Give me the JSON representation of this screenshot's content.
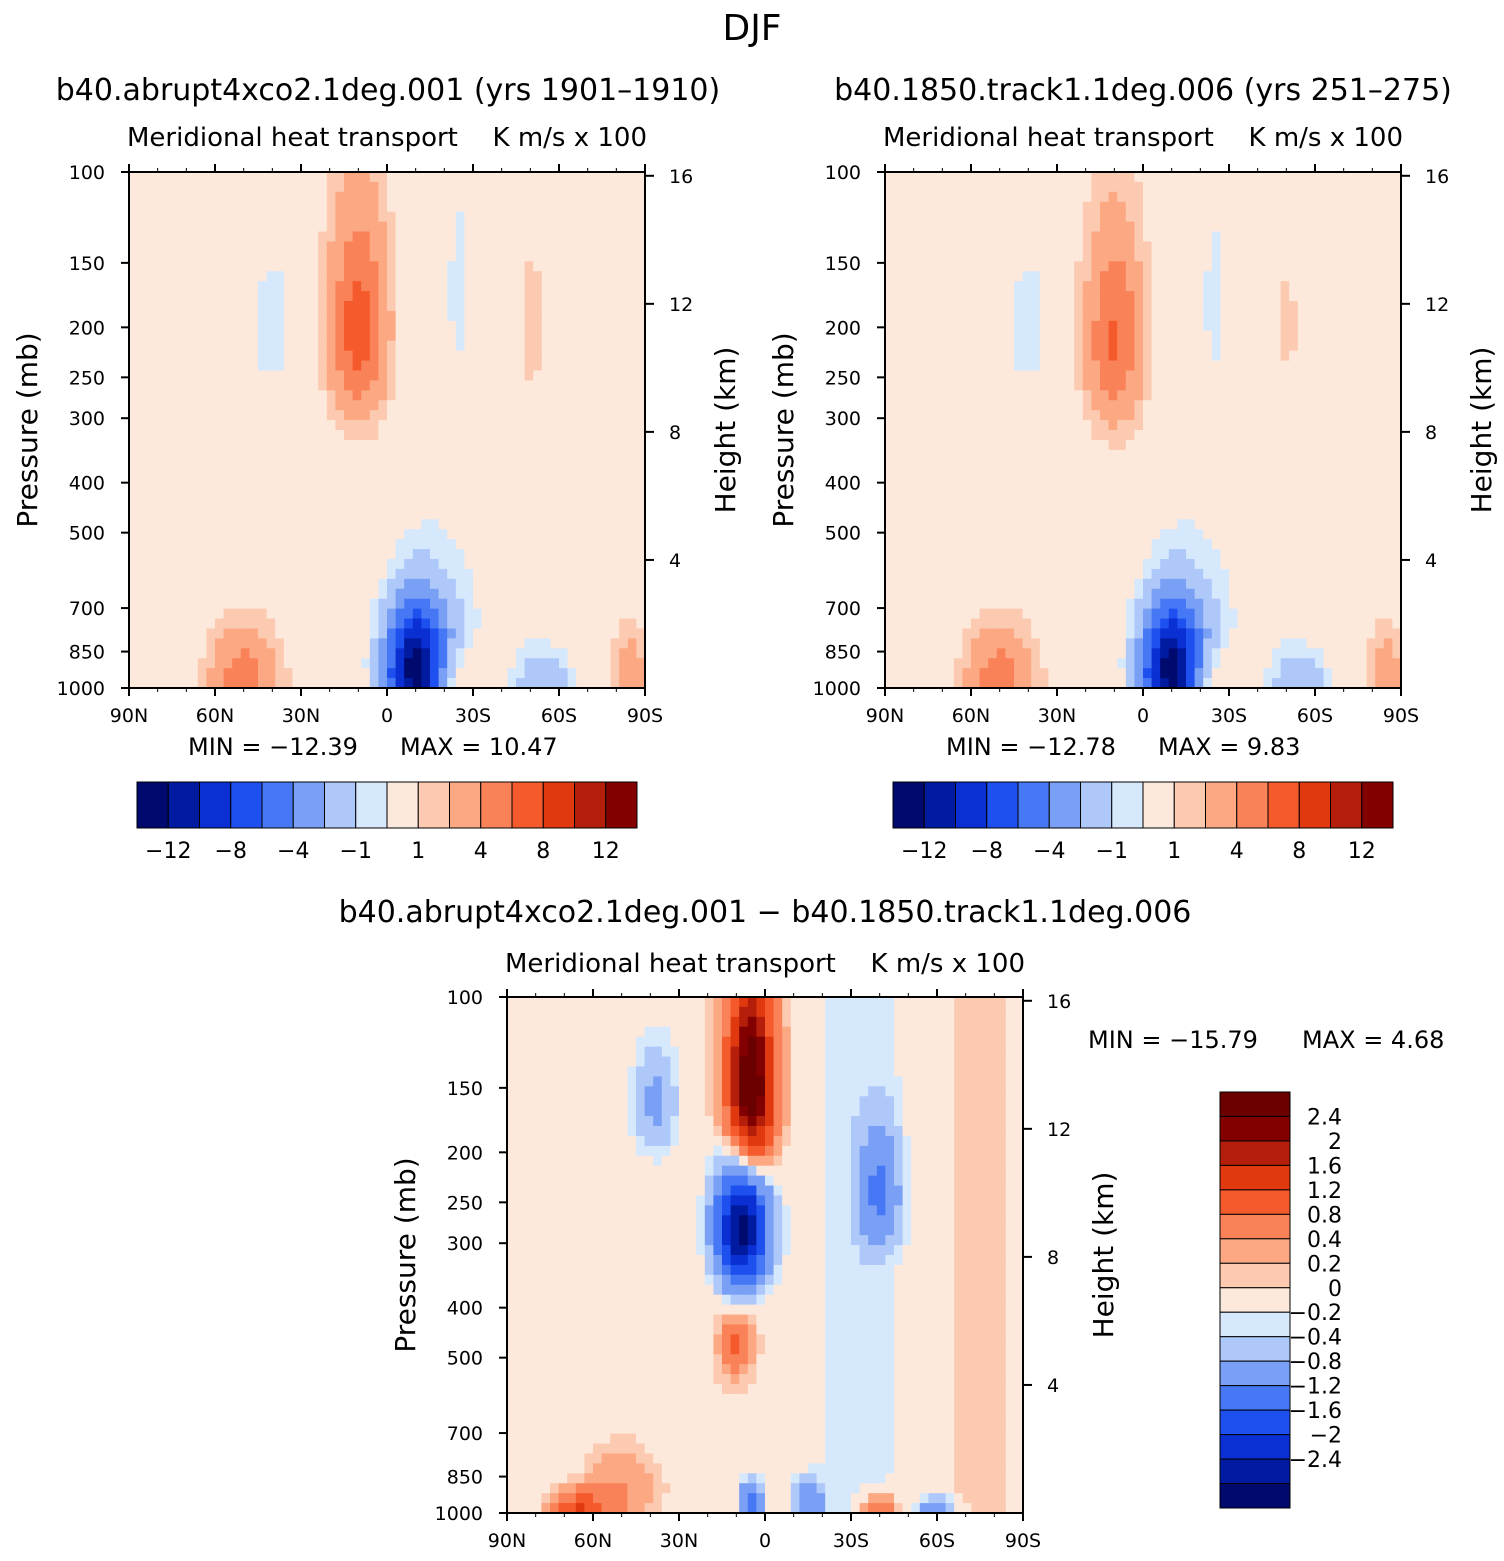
{
  "figure": {
    "season_title": "DJF"
  },
  "chart_data": [
    {
      "type": "heatmap",
      "id": "panel1",
      "title": "b40.abrupt4xco2.1deg.001 (yrs 1901–1910)",
      "left_label": "Meridional heat transport",
      "right_label": "K m/s x 100",
      "ylabel": "Pressure (mb)",
      "y2label": "Height (km)",
      "x_ticks": [
        "90N",
        "60N",
        "30N",
        "0",
        "30S",
        "60S",
        "90S"
      ],
      "x_range": [
        90,
        -90
      ],
      "y_ticks": [
        "100",
        "150",
        "200",
        "250",
        "300",
        "400",
        "500",
        "700",
        "850",
        "1000"
      ],
      "y_range": [
        100,
        1000
      ],
      "y2_ticks": [
        "16",
        "12",
        "8",
        "4"
      ],
      "min_label": "MIN = −12.39",
      "max_label": "MAX =  10.47",
      "min": -12.39,
      "max": 10.47,
      "colorbar_labels": [
        "−12",
        "−8",
        "−4",
        "−1",
        "1",
        "4",
        "8",
        "12"
      ],
      "colorbar_levels": [
        -14,
        -12,
        -10,
        -8,
        -6,
        -4,
        -2,
        -1,
        1,
        2,
        4,
        6,
        8,
        10,
        12,
        14
      ],
      "features": [
        {
          "lat": 50,
          "p": 950,
          "value": 5,
          "w": 12,
          "h": 200
        },
        {
          "lat": -10,
          "p": 980,
          "value": -12,
          "w": 10,
          "h": 260
        },
        {
          "lat": -12,
          "p": 870,
          "value": -6,
          "w": 14,
          "h": 260
        },
        {
          "lat": -20,
          "p": 970,
          "value": 4,
          "w": 14,
          "h": 150
        },
        {
          "lat": -55,
          "p": 980,
          "value": -4,
          "w": 10,
          "h": 150
        },
        {
          "lat": -85,
          "p": 950,
          "value": 3,
          "w": 6,
          "h": 180
        },
        {
          "lat": 10,
          "p": 200,
          "value": 7,
          "w": 10,
          "h": 90
        },
        {
          "lat": 40,
          "p": 200,
          "value": -2,
          "w": 7,
          "h": 60
        },
        {
          "lat": -25,
          "p": 170,
          "value": -1.5,
          "w": 3,
          "h": 50
        },
        {
          "lat": -50,
          "p": 200,
          "value": 2,
          "w": 5,
          "h": 70
        }
      ]
    },
    {
      "type": "heatmap",
      "id": "panel2",
      "title": "b40.1850.track1.1deg.006 (yrs 251–275)",
      "left_label": "Meridional heat transport",
      "right_label": "K m/s x 100",
      "ylabel": "Pressure (mb)",
      "y2label": "Height (km)",
      "x_ticks": [
        "90N",
        "60N",
        "30N",
        "0",
        "30S",
        "60S",
        "90S"
      ],
      "x_range": [
        90,
        -90
      ],
      "y_ticks": [
        "100",
        "150",
        "200",
        "250",
        "300",
        "400",
        "500",
        "700",
        "850",
        "1000"
      ],
      "y_range": [
        100,
        1000
      ],
      "y2_ticks": [
        "16",
        "12",
        "8",
        "4"
      ],
      "min_label": "MIN = −12.78",
      "max_label": "MAX =   9.83",
      "min": -12.78,
      "max": 9.83,
      "colorbar_labels": [
        "−12",
        "−8",
        "−4",
        "−1",
        "1",
        "4",
        "8",
        "12"
      ],
      "colorbar_levels": [
        -14,
        -12,
        -10,
        -8,
        -6,
        -4,
        -2,
        -1,
        1,
        2,
        4,
        6,
        8,
        10,
        12,
        14
      ],
      "features": [
        {
          "lat": 50,
          "p": 950,
          "value": 5,
          "w": 12,
          "h": 200
        },
        {
          "lat": -10,
          "p": 980,
          "value": -12,
          "w": 10,
          "h": 260
        },
        {
          "lat": -12,
          "p": 870,
          "value": -6,
          "w": 14,
          "h": 260
        },
        {
          "lat": -20,
          "p": 970,
          "value": 4,
          "w": 14,
          "h": 150
        },
        {
          "lat": -55,
          "p": 980,
          "value": -4,
          "w": 10,
          "h": 150
        },
        {
          "lat": -85,
          "p": 950,
          "value": 3,
          "w": 6,
          "h": 180
        },
        {
          "lat": 10,
          "p": 210,
          "value": 6,
          "w": 10,
          "h": 90
        },
        {
          "lat": 40,
          "p": 200,
          "value": -2,
          "w": 7,
          "h": 60
        },
        {
          "lat": -25,
          "p": 180,
          "value": -1.5,
          "w": 3,
          "h": 50
        },
        {
          "lat": -50,
          "p": 200,
          "value": 1.5,
          "w": 5,
          "h": 70
        }
      ]
    },
    {
      "type": "heatmap",
      "id": "panel3",
      "title": "b40.abrupt4xco2.1deg.001 − b40.1850.track1.1deg.006",
      "left_label": "Meridional heat transport",
      "right_label": "K m/s x 100",
      "ylabel": "Pressure (mb)",
      "y2label": "Height (km)",
      "x_ticks": [
        "90N",
        "60N",
        "30N",
        "0",
        "30S",
        "60S",
        "90S"
      ],
      "x_range": [
        90,
        -90
      ],
      "y_ticks": [
        "100",
        "150",
        "200",
        "250",
        "300",
        "400",
        "500",
        "700",
        "850",
        "1000"
      ],
      "y_range": [
        100,
        1000
      ],
      "y2_ticks": [
        "16",
        "12",
        "8",
        "4"
      ],
      "min_label": "MIN = −15.79",
      "max_label": "MAX =   4.68",
      "min": -15.79,
      "max": 4.68,
      "colorbar_labels": [
        "2.4",
        "2",
        "1.6",
        "1.2",
        "0.8",
        "0.4",
        "0.2",
        "0",
        "−0.2",
        "−0.4",
        "−0.8",
        "−1.2",
        "−1.6",
        "−2",
        "−2.4"
      ],
      "colorbar_levels": [
        2.6,
        2.4,
        2,
        1.6,
        1.2,
        0.8,
        0.4,
        0.2,
        0.1,
        -0.1,
        -0.2,
        -0.4,
        -0.8,
        -1.2,
        -1.6,
        -2,
        -2.4,
        -2.6
      ],
      "features": [
        {
          "lat": 5,
          "p": 150,
          "value": 3,
          "w": 8,
          "h": 60
        },
        {
          "lat": 8,
          "p": 280,
          "value": -2.6,
          "w": 9,
          "h": 80
        },
        {
          "lat": 38,
          "p": 160,
          "value": -0.5,
          "w": 8,
          "h": 40
        },
        {
          "lat": -40,
          "p": 240,
          "value": -0.8,
          "w": 7,
          "h": 60
        },
        {
          "lat": 10,
          "p": 470,
          "value": 0.8,
          "w": 5,
          "h": 60
        },
        {
          "lat": 65,
          "p": 990,
          "value": 1.2,
          "w": 10,
          "h": 80
        },
        {
          "lat": 5,
          "p": 960,
          "value": -1.2,
          "w": 4,
          "h": 100
        },
        {
          "lat": -15,
          "p": 950,
          "value": -0.8,
          "w": 5,
          "h": 80
        },
        {
          "lat": -40,
          "p": 980,
          "value": 0.8,
          "w": 6,
          "h": 60
        },
        {
          "lat": -60,
          "p": 980,
          "value": -0.8,
          "w": 6,
          "h": 50
        },
        {
          "lat": 50,
          "p": 900,
          "value": 0.4,
          "w": 12,
          "h": 150
        }
      ]
    }
  ]
}
